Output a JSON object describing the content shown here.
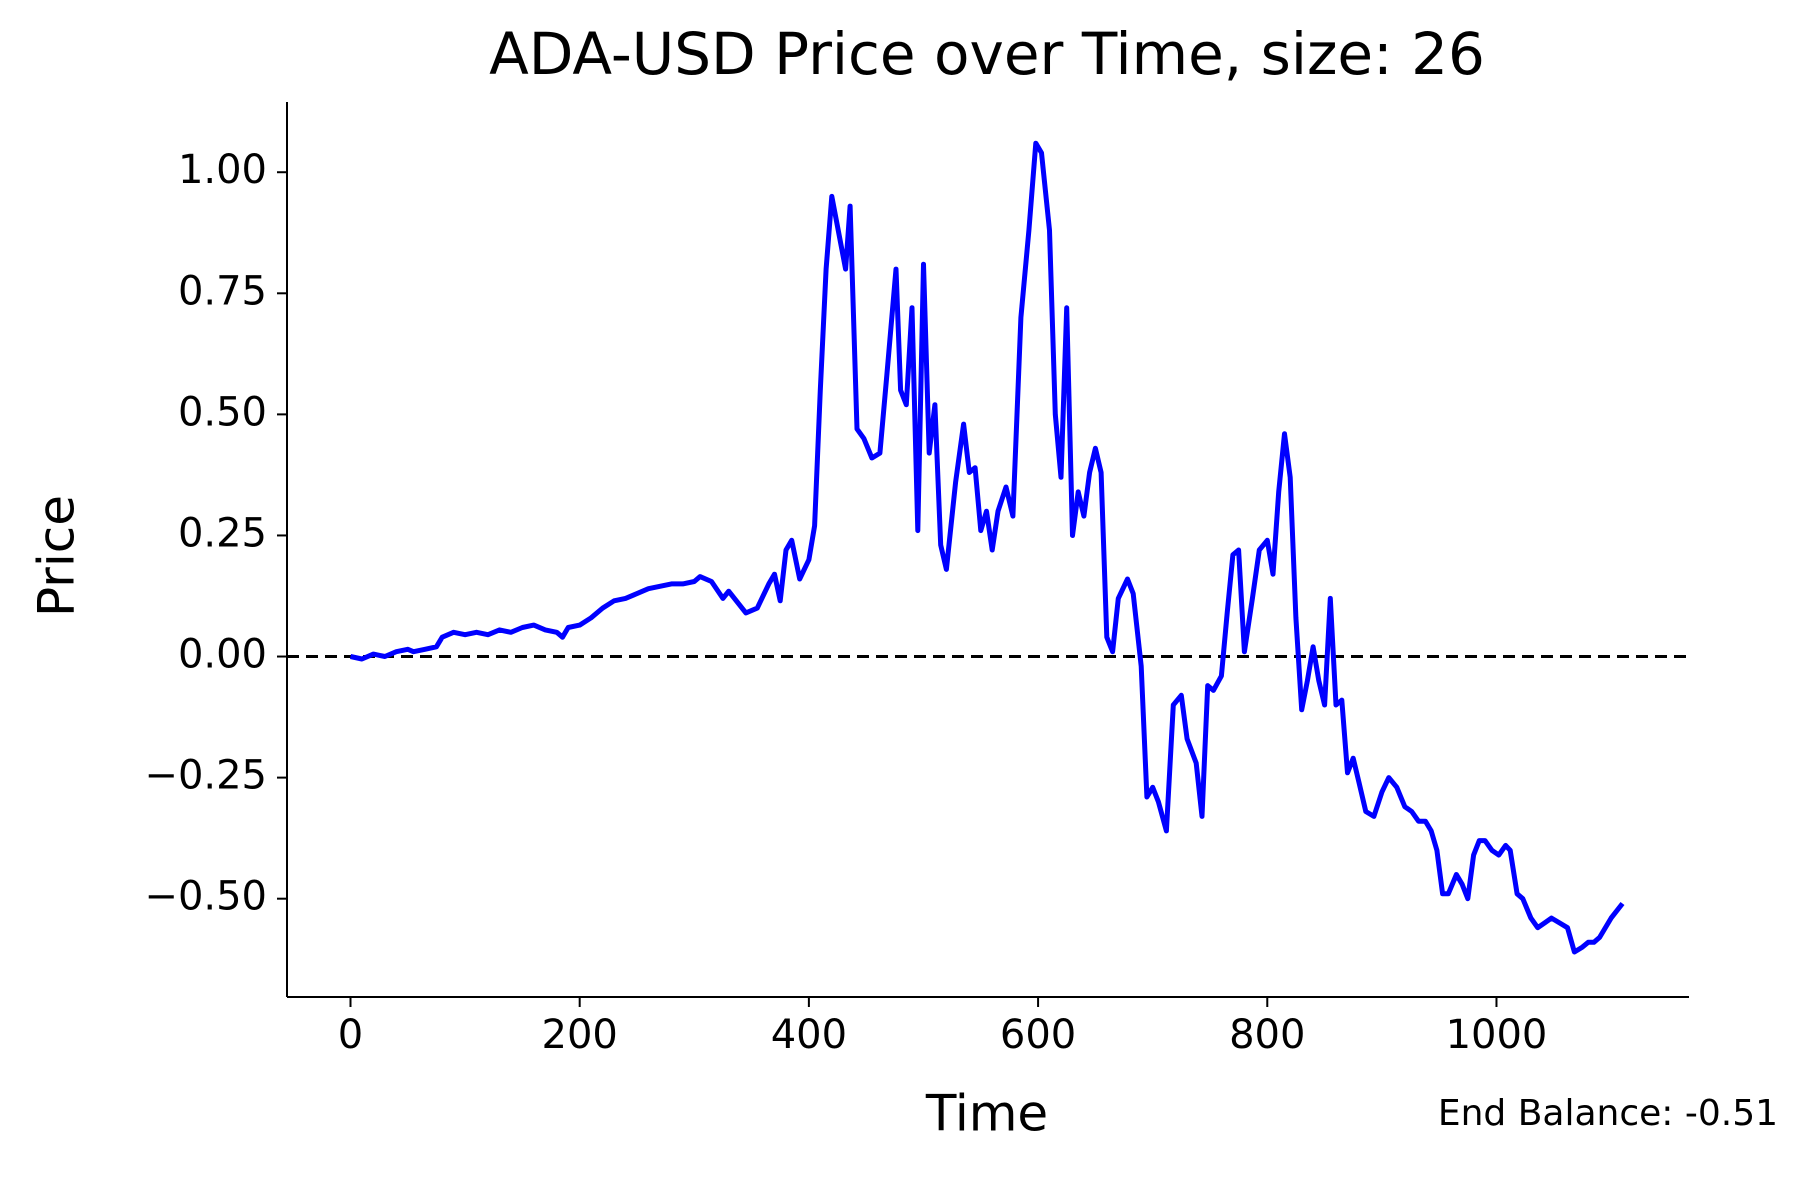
{
  "chart_data": {
    "type": "line",
    "title": "ADA-USD Price over Time, size: 26",
    "xlabel": "Time",
    "ylabel": "Price",
    "annotation": "End Balance: -0.51",
    "reference_line": 0,
    "x": [
      0,
      10,
      20,
      30,
      40,
      50,
      55,
      65,
      75,
      80,
      90,
      100,
      110,
      120,
      130,
      140,
      150,
      160,
      170,
      180,
      185,
      190,
      200,
      210,
      220,
      230,
      240,
      250,
      260,
      270,
      280,
      290,
      300,
      305,
      315,
      325,
      330,
      345,
      355,
      365,
      370,
      375,
      380,
      385,
      392,
      400,
      405,
      410,
      415,
      420,
      428,
      432,
      436,
      442,
      448,
      455,
      462,
      468,
      476,
      480,
      485,
      490,
      495,
      500,
      505,
      510,
      515,
      520,
      528,
      535,
      540,
      545,
      550,
      555,
      560,
      565,
      572,
      578,
      585,
      592,
      598,
      603,
      610,
      615,
      620,
      625,
      630,
      635,
      640,
      645,
      650,
      655,
      660,
      665,
      670,
      678,
      683,
      690,
      695,
      700,
      705,
      712,
      718,
      725,
      730,
      738,
      743,
      748,
      753,
      760,
      765,
      770,
      775,
      780,
      787,
      793,
      800,
      805,
      810,
      815,
      820,
      825,
      830,
      835,
      840,
      845,
      850,
      855,
      860,
      865,
      870,
      875,
      880,
      886,
      893,
      900,
      906,
      913,
      920,
      926,
      932,
      938,
      943,
      948,
      953,
      958,
      965,
      970,
      975,
      980,
      985,
      990,
      996,
      1002,
      1008,
      1012,
      1018,
      1023,
      1030,
      1036,
      1042,
      1048,
      1055,
      1062,
      1068,
      1075,
      1080,
      1085,
      1090,
      1100,
      1110
    ],
    "series": [
      {
        "name": "Price",
        "color": "#0000ff",
        "values": [
          0,
          -0.005,
          0.005,
          0,
          0.01,
          0.015,
          0.01,
          0.015,
          0.02,
          0.04,
          0.05,
          0.045,
          0.05,
          0.045,
          0.055,
          0.05,
          0.06,
          0.065,
          0.055,
          0.05,
          0.04,
          0.06,
          0.065,
          0.08,
          0.1,
          0.115,
          0.12,
          0.13,
          0.14,
          0.145,
          0.15,
          0.15,
          0.155,
          0.165,
          0.155,
          0.12,
          0.135,
          0.09,
          0.1,
          0.15,
          0.17,
          0.115,
          0.22,
          0.24,
          0.16,
          0.2,
          0.27,
          0.55,
          0.8,
          0.95,
          0.85,
          0.8,
          0.93,
          0.47,
          0.45,
          0.41,
          0.42,
          0.58,
          0.8,
          0.55,
          0.52,
          0.72,
          0.26,
          0.81,
          0.42,
          0.52,
          0.23,
          0.18,
          0.36,
          0.48,
          0.38,
          0.39,
          0.26,
          0.3,
          0.22,
          0.3,
          0.35,
          0.29,
          0.7,
          0.88,
          1.06,
          1.04,
          0.88,
          0.5,
          0.37,
          0.72,
          0.25,
          0.34,
          0.29,
          0.38,
          0.43,
          0.38,
          0.04,
          0.01,
          0.12,
          0.16,
          0.13,
          -0.02,
          -0.29,
          -0.27,
          -0.3,
          -0.36,
          -0.1,
          -0.08,
          -0.17,
          -0.22,
          -0.33,
          -0.06,
          -0.07,
          -0.04,
          0.09,
          0.21,
          0.22,
          0.01,
          0.12,
          0.22,
          0.24,
          0.17,
          0.34,
          0.46,
          0.37,
          0.08,
          -0.11,
          -0.05,
          0.02,
          -0.05,
          -0.1,
          0.12,
          -0.1,
          -0.09,
          -0.24,
          -0.21,
          -0.26,
          -0.32,
          -0.33,
          -0.28,
          -0.25,
          -0.27,
          -0.31,
          -0.32,
          -0.34,
          -0.34,
          -0.36,
          -0.4,
          -0.49,
          -0.49,
          -0.45,
          -0.47,
          -0.5,
          -0.41,
          -0.38,
          -0.38,
          -0.4,
          -0.41,
          -0.39,
          -0.4,
          -0.49,
          -0.5,
          -0.54,
          -0.56,
          -0.55,
          -0.54,
          -0.55,
          -0.56,
          -0.61,
          -0.6,
          -0.59,
          -0.59,
          -0.58,
          -0.54,
          -0.51
        ]
      }
    ],
    "xlim": [
      -55.4,
      1168
    ],
    "ylim": [
      -0.703,
      1.145
    ],
    "xticks": [
      0,
      200,
      400,
      600,
      800,
      1000
    ],
    "yticks": [
      {
        "value": -0.5,
        "label": "−0.50"
      },
      {
        "value": -0.25,
        "label": "−0.25"
      },
      {
        "value": 0,
        "label": "0.00"
      },
      {
        "value": 0.25,
        "label": "0.25"
      },
      {
        "value": 0.5,
        "label": "0.50"
      },
      {
        "value": 0.75,
        "label": "0.75"
      },
      {
        "value": 1,
        "label": "1.00"
      }
    ],
    "grid": false
  }
}
